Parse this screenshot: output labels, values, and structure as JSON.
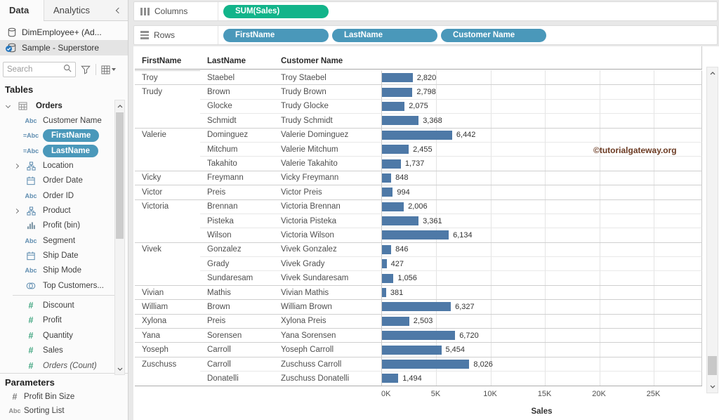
{
  "colors": {
    "bar": "#4e79a7",
    "dimension_pill": "#4a98ba",
    "measure_pill": "#12b48a",
    "watermark": "#6b3a22",
    "datasource_check": "#2878be"
  },
  "sidebar": {
    "tabs": [
      {
        "label": "Data",
        "active": true
      },
      {
        "label": "Analytics",
        "active": false
      }
    ],
    "datasources": [
      {
        "label": "DimEmployee+ (Ad...",
        "selected": false
      },
      {
        "label": "Sample - Superstore",
        "selected": true
      }
    ],
    "search": {
      "placeholder": "Search"
    },
    "tables_title": "Tables",
    "fields": [
      {
        "icon": "table",
        "label": "Orders",
        "style": "header"
      },
      {
        "icon": "abc",
        "label": "Customer Name"
      },
      {
        "icon": "calc-abc",
        "label": "FirstName",
        "pill": true
      },
      {
        "icon": "calc-abc",
        "label": "LastName",
        "pill": true
      },
      {
        "icon": "hierarchy",
        "label": "Location",
        "expandable": true
      },
      {
        "icon": "calendar",
        "label": "Order Date"
      },
      {
        "icon": "abc",
        "label": "Order ID"
      },
      {
        "icon": "hierarchy",
        "label": "Product",
        "expandable": true
      },
      {
        "icon": "histogram",
        "label": "Profit (bin)"
      },
      {
        "icon": "abc",
        "label": "Segment"
      },
      {
        "icon": "calendar",
        "label": "Ship Date"
      },
      {
        "icon": "abc",
        "label": "Ship Mode"
      },
      {
        "icon": "set",
        "label": "Top Customers...",
        "divider_after": true
      },
      {
        "icon": "hash",
        "label": "Discount",
        "measure": true
      },
      {
        "icon": "hash",
        "label": "Profit",
        "measure": true
      },
      {
        "icon": "hash",
        "label": "Quantity",
        "measure": true
      },
      {
        "icon": "hash",
        "label": "Sales",
        "measure": true
      },
      {
        "icon": "hash",
        "label": "Orders (Count)",
        "measure": true,
        "italic": true
      }
    ],
    "parameters_title": "Parameters",
    "parameters": [
      {
        "icon": "hash",
        "label": "Profit Bin Size"
      },
      {
        "icon": "abc",
        "label": "Sorting List"
      }
    ]
  },
  "shelves": {
    "columns_label": "Columns",
    "columns_pills": [
      {
        "label": "SUM(Sales)",
        "kind": "measure"
      }
    ],
    "rows_label": "Rows",
    "rows_pills": [
      {
        "label": "FirstName",
        "kind": "dimension"
      },
      {
        "label": "LastName",
        "kind": "dimension"
      },
      {
        "label": "Customer Name",
        "kind": "dimension"
      }
    ]
  },
  "watermark": "©tutorialgateway.org",
  "chart_data": {
    "type": "bar",
    "orientation": "horizontal",
    "columns": [
      "FirstName",
      "LastName",
      "Customer Name"
    ],
    "xlabel": "Sales",
    "x_ticks": [
      {
        "label": "0K",
        "value": 0
      },
      {
        "label": "5K",
        "value": 5000
      },
      {
        "label": "10K",
        "value": 10000
      },
      {
        "label": "15K",
        "value": 15000
      },
      {
        "label": "20K",
        "value": 20000
      },
      {
        "label": "25K",
        "value": 25000
      }
    ],
    "xlim": [
      0,
      29500
    ],
    "grid": true,
    "rows": [
      {
        "first": "Troy",
        "last": "Staebel",
        "customer": "Troy Staebel",
        "sales": 2820,
        "label": "2,820",
        "group_start": true
      },
      {
        "first": "Trudy",
        "last": "Brown",
        "customer": "Trudy Brown",
        "sales": 2798,
        "label": "2,798",
        "group_start": true
      },
      {
        "first": "",
        "last": "Glocke",
        "customer": "Trudy Glocke",
        "sales": 2075,
        "label": "2,075",
        "group_start": false
      },
      {
        "first": "",
        "last": "Schmidt",
        "customer": "Trudy Schmidt",
        "sales": 3368,
        "label": "3,368",
        "group_start": false
      },
      {
        "first": "Valerie",
        "last": "Dominguez",
        "customer": "Valerie Dominguez",
        "sales": 6442,
        "label": "6,442",
        "group_start": true
      },
      {
        "first": "",
        "last": "Mitchum",
        "customer": "Valerie Mitchum",
        "sales": 2455,
        "label": "2,455",
        "group_start": false
      },
      {
        "first": "",
        "last": "Takahito",
        "customer": "Valerie Takahito",
        "sales": 1737,
        "label": "1,737",
        "group_start": false
      },
      {
        "first": "Vicky",
        "last": "Freymann",
        "customer": "Vicky Freymann",
        "sales": 848,
        "label": "848",
        "group_start": true
      },
      {
        "first": "Victor",
        "last": "Preis",
        "customer": "Victor Preis",
        "sales": 994,
        "label": "994",
        "group_start": true
      },
      {
        "first": "Victoria",
        "last": "Brennan",
        "customer": "Victoria Brennan",
        "sales": 2006,
        "label": "2,006",
        "group_start": true
      },
      {
        "first": "",
        "last": "Pisteka",
        "customer": "Victoria Pisteka",
        "sales": 3361,
        "label": "3,361",
        "group_start": false
      },
      {
        "first": "",
        "last": "Wilson",
        "customer": "Victoria Wilson",
        "sales": 6134,
        "label": "6,134",
        "group_start": false
      },
      {
        "first": "Vivek",
        "last": "Gonzalez",
        "customer": "Vivek Gonzalez",
        "sales": 846,
        "label": "846",
        "group_start": true
      },
      {
        "first": "",
        "last": "Grady",
        "customer": "Vivek Grady",
        "sales": 427,
        "label": "427",
        "group_start": false
      },
      {
        "first": "",
        "last": "Sundaresam",
        "customer": "Vivek Sundaresam",
        "sales": 1056,
        "label": "1,056",
        "group_start": false
      },
      {
        "first": "Vivian",
        "last": "Mathis",
        "customer": "Vivian Mathis",
        "sales": 381,
        "label": "381",
        "group_start": true
      },
      {
        "first": "William",
        "last": "Brown",
        "customer": "William Brown",
        "sales": 6327,
        "label": "6,327",
        "group_start": true
      },
      {
        "first": "Xylona",
        "last": "Preis",
        "customer": "Xylona Preis",
        "sales": 2503,
        "label": "2,503",
        "group_start": true
      },
      {
        "first": "Yana",
        "last": "Sorensen",
        "customer": "Yana Sorensen",
        "sales": 6720,
        "label": "6,720",
        "group_start": true
      },
      {
        "first": "Yoseph",
        "last": "Carroll",
        "customer": "Yoseph Carroll",
        "sales": 5454,
        "label": "5,454",
        "group_start": true
      },
      {
        "first": "Zuschuss",
        "last": "Carroll",
        "customer": "Zuschuss Carroll",
        "sales": 8026,
        "label": "8,026",
        "group_start": true
      },
      {
        "first": "",
        "last": "Donatelli",
        "customer": "Zuschuss Donatelli",
        "sales": 1494,
        "label": "1,494",
        "group_start": false
      }
    ]
  }
}
